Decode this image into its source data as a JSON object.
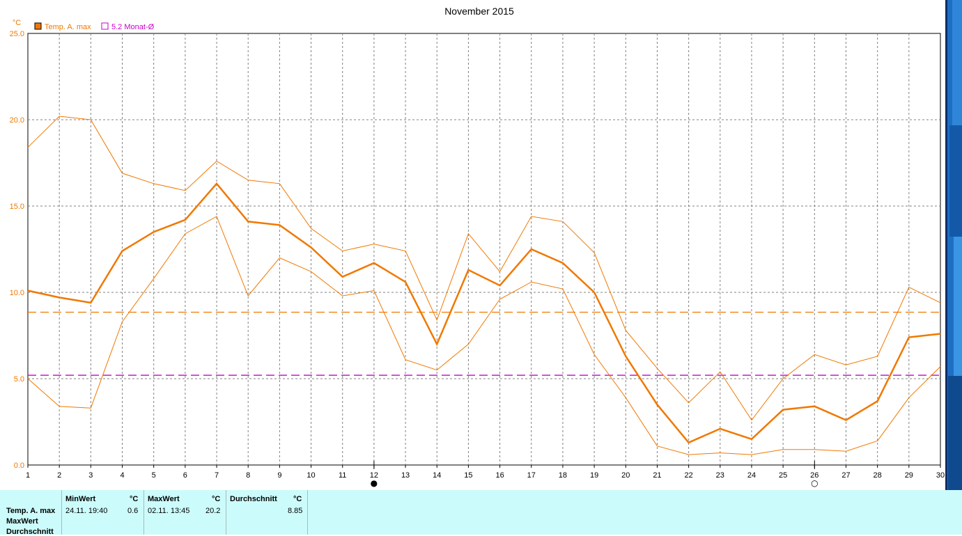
{
  "chart_data": {
    "type": "line",
    "title": "November 2015",
    "ylabel": "°C",
    "xlabel": "",
    "x": [
      1,
      2,
      3,
      4,
      5,
      6,
      7,
      8,
      9,
      10,
      11,
      12,
      13,
      14,
      15,
      16,
      17,
      18,
      19,
      20,
      21,
      22,
      23,
      24,
      25,
      26,
      27,
      28,
      29,
      30
    ],
    "xlim": [
      1,
      30
    ],
    "ylim": [
      0,
      25
    ],
    "yticks": [
      "0.0",
      "5.0",
      "10.0",
      "15.0",
      "20.0",
      "25.0"
    ],
    "grid": true,
    "legend_position": "top-left",
    "legend": [
      {
        "label": "Temp. A. max",
        "color": "#f07800"
      },
      {
        "label": "5.2 Monat-Ø",
        "color": "#c800c8"
      }
    ],
    "series": [
      {
        "name": "Temp. A. max",
        "color": "#f07800",
        "width": 2.5,
        "values": [
          10.1,
          9.7,
          9.4,
          12.4,
          13.5,
          14.2,
          16.3,
          14.1,
          13.9,
          12.6,
          10.9,
          11.7,
          10.6,
          7.0,
          11.3,
          10.4,
          12.5,
          11.7,
          10.0,
          6.3,
          3.5,
          1.3,
          2.1,
          1.5,
          3.2,
          3.4,
          2.6,
          3.7,
          7.4,
          7.6
        ]
      },
      {
        "color": "#f07800",
        "width": 1,
        "values": [
          18.4,
          20.2,
          20.0,
          16.9,
          16.3,
          15.9,
          17.6,
          16.5,
          16.3,
          13.7,
          12.4,
          12.8,
          12.4,
          8.4,
          13.4,
          11.2,
          14.4,
          14.1,
          12.3,
          7.8,
          5.6,
          3.6,
          5.4,
          2.6,
          5.0,
          6.4,
          5.8,
          6.3,
          10.3,
          9.4
        ]
      },
      {
        "color": "#f07800",
        "width": 1,
        "values": [
          5.0,
          3.4,
          3.3,
          8.3,
          10.8,
          13.4,
          14.4,
          9.8,
          12.0,
          11.2,
          9.8,
          10.1,
          6.1,
          5.5,
          7.0,
          9.6,
          10.6,
          10.2,
          6.4,
          3.9,
          1.1,
          0.6,
          0.7,
          0.6,
          0.9,
          0.9,
          0.8,
          1.4,
          3.9,
          5.7
        ]
      }
    ],
    "reference_lines": [
      {
        "value": 8.85,
        "color": "#f07800",
        "dash": "dashed"
      },
      {
        "value": 5.2,
        "color": "#c800c8",
        "dash": "dashed"
      }
    ],
    "moon_markers": [
      {
        "day": 12,
        "symbol": "●"
      },
      {
        "day": 26,
        "symbol": "○"
      }
    ]
  },
  "stats": {
    "row_labels": [
      "Temp. A. max",
      "MaxWert",
      "Durchschnitt"
    ],
    "min_header": "MinWert",
    "max_header": "MaxWert",
    "avg_header": "Durchschnitt",
    "unit": "°C",
    "min_datetime": "24.11.  19:40",
    "min_value": "0.6",
    "max_datetime": "02.11.  13:45",
    "max_value": "20.2",
    "avg_value": "8.85"
  },
  "colors": {
    "info_bg": "#ccfbfb",
    "desktop_blue": "#1e6fc4"
  }
}
